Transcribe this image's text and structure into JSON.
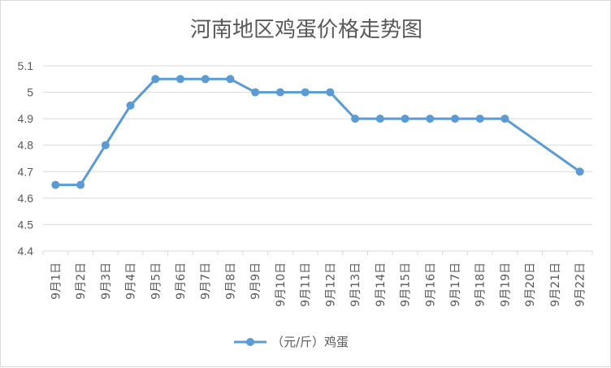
{
  "chart_data": {
    "type": "line",
    "title": "河南地区鸡蛋价格走势图",
    "xlabel": "",
    "ylabel": "",
    "ylim": [
      4.4,
      5.1
    ],
    "yticks": [
      "4.4",
      "4.5",
      "4.6",
      "4.7",
      "4.8",
      "4.9",
      "5",
      "5.1"
    ],
    "categories": [
      "9月1日",
      "9月2日",
      "9月3日",
      "9月4日",
      "9月5日",
      "9月6日",
      "9月7日",
      "9月8日",
      "9月9日",
      "9月10日",
      "9月11日",
      "9月12日",
      "9月13日",
      "9月14日",
      "9月15日",
      "9月16日",
      "9月17日",
      "9月18日",
      "9月19日",
      "9月20日",
      "9月21日",
      "9月22日"
    ],
    "series": [
      {
        "name": "（元/斤）鸡蛋",
        "values": [
          4.65,
          4.65,
          4.8,
          4.95,
          5.05,
          5.05,
          5.05,
          5.05,
          5.0,
          5.0,
          5.0,
          5.0,
          4.9,
          4.9,
          4.9,
          4.9,
          4.9,
          4.9,
          4.9,
          null,
          null,
          4.7
        ]
      }
    ],
    "grid": true,
    "legend": "bottom",
    "colors": {
      "series": "#5b9bd5",
      "grid": "#d9d9d9",
      "axis": "#d9d9d9",
      "text": "#595959"
    }
  }
}
